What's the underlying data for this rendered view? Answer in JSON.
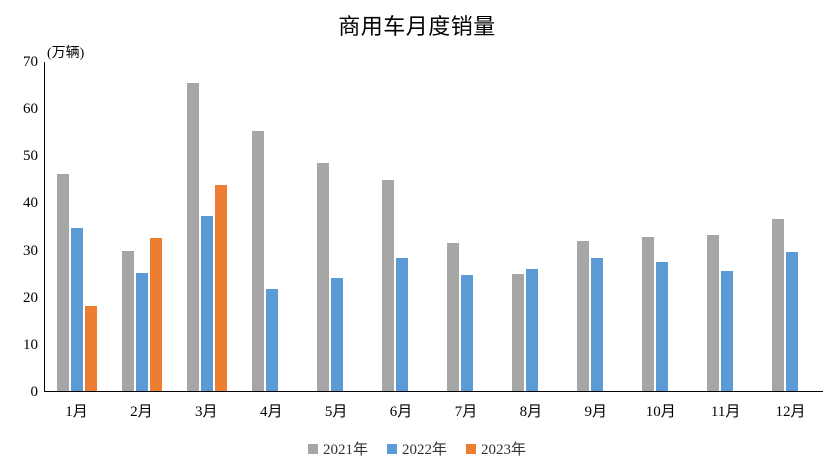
{
  "title": "商用车月度销量",
  "y_unit_label": "(万辆)",
  "chart_data": {
    "type": "bar",
    "title": "商用车月度销量",
    "ylabel": "(万辆)",
    "categories": [
      "1月",
      "2月",
      "3月",
      "4月",
      "5月",
      "6月",
      "7月",
      "8月",
      "9月",
      "10月",
      "11月",
      "12月"
    ],
    "series": [
      {
        "name": "2021年",
        "color": "#a6a6a6",
        "values": [
          46,
          29.8,
          65.4,
          55.2,
          48.3,
          44.7,
          31.5,
          24.8,
          31.9,
          32.6,
          33.1,
          36.5
        ]
      },
      {
        "name": "2022年",
        "color": "#5b9bd5",
        "values": [
          34.5,
          25.1,
          37.1,
          21.6,
          24,
          28.3,
          24.6,
          25.9,
          28.2,
          27.4,
          25.5,
          29.4
        ]
      },
      {
        "name": "2023年",
        "color": "#ed7d31",
        "values": [
          18,
          32.4,
          43.6,
          null,
          null,
          null,
          null,
          null,
          null,
          null,
          null,
          null
        ]
      }
    ],
    "ylim": [
      0,
      70
    ],
    "ytick_step": 10,
    "grid": false,
    "legend_position": "bottom",
    "axis_color": "#000000"
  }
}
